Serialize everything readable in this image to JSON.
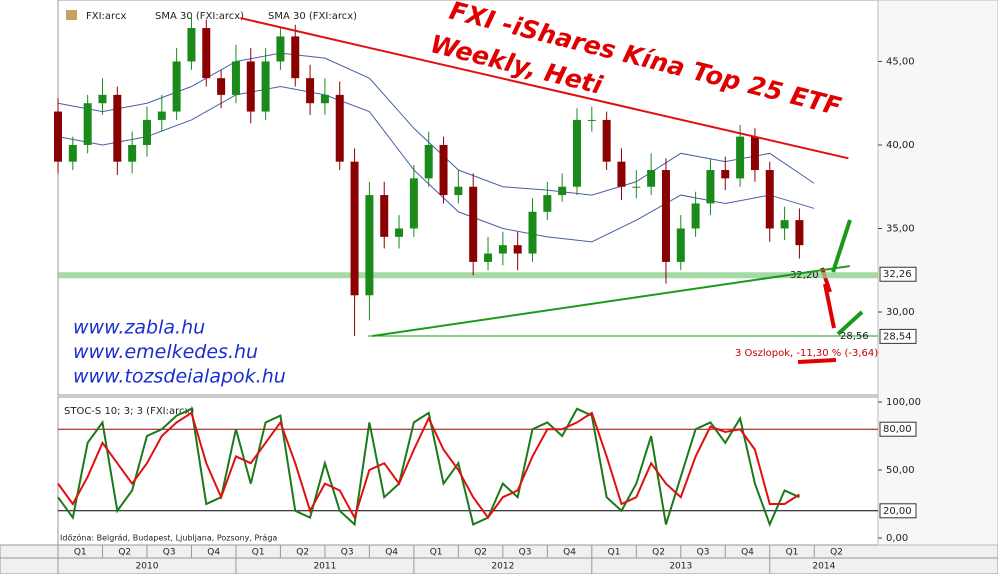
{
  "chart_data": [
    {
      "type": "candlestick",
      "name": "FXI:arcx",
      "title": "FXI -iShares Kína Top 25 ETF",
      "subtitle": "Weekly, Heti",
      "up_color": "#1a8a1a",
      "down_color": "#8b0000",
      "x": [
        0,
        1,
        2,
        3,
        4,
        5,
        6,
        7,
        8,
        9,
        10,
        11,
        12,
        13,
        14,
        15,
        16,
        17,
        18,
        19,
        20,
        21,
        22,
        23,
        24,
        25,
        26,
        27,
        28,
        29,
        30,
        31,
        32,
        33,
        34,
        35,
        36,
        37,
        38,
        39,
        40,
        41,
        42,
        43,
        44,
        45,
        46,
        47,
        48,
        49,
        50
      ],
      "open": [
        42,
        39,
        40,
        42.5,
        43,
        39,
        40,
        41.5,
        42,
        45,
        47,
        44,
        43,
        45,
        42,
        45,
        46.5,
        44,
        42.5,
        43,
        39,
        31,
        37,
        34.5,
        35,
        38,
        40,
        37,
        37.5,
        33,
        33.5,
        34,
        33.5,
        36,
        37,
        37.5,
        41.5,
        41.5,
        39,
        37.5,
        37.5,
        38.5,
        33,
        35,
        36.5,
        38.5,
        38,
        40.5,
        38.5,
        35,
        35.5
      ],
      "high": [
        42.8,
        40.5,
        43,
        44,
        43.5,
        40.8,
        42.3,
        43,
        45.8,
        47.8,
        47.5,
        44.5,
        46,
        45.8,
        45.8,
        47,
        47.2,
        44.8,
        44,
        43.8,
        39.8,
        37.8,
        37.8,
        35.8,
        38.8,
        40.8,
        40.5,
        38.5,
        38.3,
        34.5,
        34.8,
        34.8,
        36.8,
        37.8,
        38.3,
        42.2,
        42.3,
        42,
        39.8,
        38.5,
        39.5,
        39.2,
        35.8,
        37.2,
        39.2,
        39.3,
        41.2,
        41,
        39,
        36.3,
        36.2
      ],
      "low": [
        38.3,
        38.5,
        39.5,
        41.8,
        38.2,
        38.3,
        39.3,
        40.8,
        41.5,
        44.5,
        43.5,
        42.2,
        42.5,
        41.3,
        41.5,
        44.5,
        43.5,
        41.8,
        41.8,
        38.5,
        28.56,
        29.5,
        33.8,
        33.8,
        34.5,
        37.5,
        36.5,
        36.5,
        32.2,
        32.5,
        32.8,
        32.5,
        33,
        35.5,
        36.6,
        37,
        40.8,
        38.5,
        36.7,
        36.8,
        37,
        31.7,
        32.5,
        34.5,
        35.8,
        37.3,
        37.5,
        37.8,
        34.2,
        34.3,
        33.2
      ],
      "close": [
        39,
        40,
        42.5,
        43,
        39,
        40,
        41.5,
        42,
        45,
        47,
        44,
        43,
        45,
        42,
        45,
        46.5,
        44,
        42.5,
        43,
        39,
        31,
        37,
        34.5,
        35,
        38,
        40,
        37,
        37.5,
        33,
        33.5,
        34,
        33.5,
        36,
        37,
        37.5,
        41.5,
        41.5,
        39,
        37.5,
        37.5,
        38.5,
        33,
        35,
        36.5,
        38.5,
        38,
        40.5,
        38.5,
        35,
        35.5,
        34
      ],
      "series": [
        {
          "name": "SMA 30 (FXI:arcx)",
          "color": "#4a5fa8",
          "x": [
            0,
            3,
            6,
            9,
            12,
            15,
            18,
            21,
            24,
            27,
            30,
            33,
            36,
            39,
            42,
            45,
            48,
            51
          ],
          "values": [
            42.5,
            42,
            42.5,
            43.5,
            45,
            45.5,
            45.2,
            44,
            41,
            38.5,
            37.5,
            37.3,
            37,
            37.8,
            39.5,
            39,
            39.5,
            37.7
          ]
        },
        {
          "name": "SMA 30 (FXI:arcx)",
          "color": "#4a5fa8",
          "x": [
            0,
            3,
            6,
            9,
            12,
            15,
            18,
            21,
            24,
            27,
            30,
            33,
            36,
            39,
            42,
            45,
            48,
            51
          ],
          "values": [
            40.5,
            40,
            40.5,
            41.5,
            43,
            43.5,
            43,
            42,
            38.5,
            36,
            35,
            34.5,
            34.2,
            35.5,
            37,
            36.5,
            37,
            36.2
          ]
        }
      ],
      "trendlines": [
        {
          "color": "#e01010",
          "x": [
            12.3,
            53.3
          ],
          "values": [
            47.6,
            39.2
          ]
        },
        {
          "color": "#1a9a1a",
          "x": [
            21.2,
            53.4
          ],
          "values": [
            28.56,
            32.75
          ]
        }
      ],
      "levels": [
        {
          "value": 32.2,
          "label": "32,20"
        },
        {
          "value": 28.56,
          "label": "28,56"
        }
      ],
      "badges": [
        {
          "value": 32.26,
          "label": "32,26"
        },
        {
          "value": 28.54,
          "label": "28,54"
        }
      ],
      "annotation": "3 Oszlopok, -11,30 % (-3,64)",
      "websites": [
        "www.zabla.hu",
        "www.emelkedes.hu",
        "www.tozsdeialapok.hu"
      ],
      "xlim": [
        0,
        55.3
      ],
      "ylim": [
        25.03,
        48.68
      ],
      "yticks": [
        {
          "value": 30,
          "label": "30,00"
        },
        {
          "value": 35,
          "label": "35,00"
        },
        {
          "value": 40,
          "label": "40,00"
        },
        {
          "value": 45,
          "label": "45,00"
        }
      ]
    },
    {
      "type": "line",
      "title": "STOC-S 10; 3; 3 (FXI:arcx)",
      "timezone": "Időzóna: Belgrád, Budapest, Ljubljana, Pozsony, Prága",
      "x": [
        0,
        1,
        2,
        3,
        4,
        5,
        6,
        7,
        8,
        9,
        10,
        11,
        12,
        13,
        14,
        15,
        16,
        17,
        18,
        19,
        20,
        21,
        22,
        23,
        24,
        25,
        26,
        27,
        28,
        29,
        30,
        31,
        32,
        33,
        34,
        35,
        36,
        37,
        38,
        39,
        40,
        41,
        42,
        43,
        44,
        45,
        46,
        47,
        48,
        49,
        50
      ],
      "series": [
        {
          "color": "#1a7a1a",
          "values": [
            30,
            15,
            70,
            85,
            20,
            35,
            75,
            80,
            90,
            95,
            25,
            30,
            80,
            40,
            85,
            90,
            20,
            15,
            55,
            20,
            10,
            85,
            30,
            40,
            85,
            92,
            40,
            55,
            10,
            15,
            40,
            30,
            80,
            85,
            75,
            95,
            90,
            30,
            20,
            40,
            75,
            10,
            45,
            80,
            85,
            70,
            88,
            40,
            10,
            35,
            30
          ]
        },
        {
          "color": "#e01010",
          "values": [
            40,
            25,
            45,
            70,
            55,
            40,
            55,
            75,
            85,
            92,
            55,
            30,
            60,
            55,
            70,
            85,
            55,
            20,
            40,
            35,
            15,
            50,
            55,
            40,
            65,
            88,
            65,
            50,
            30,
            15,
            30,
            35,
            60,
            80,
            80,
            85,
            92,
            60,
            25,
            30,
            55,
            40,
            30,
            60,
            82,
            78,
            80,
            65,
            25,
            25,
            32
          ]
        }
      ],
      "levels": [
        {
          "value": 80,
          "label": "80,00"
        },
        {
          "value": 20,
          "label": "20,00"
        }
      ],
      "xlim": [
        0,
        55.3
      ],
      "ylim": [
        -5.15,
        103.7
      ],
      "yticks": [
        {
          "value": 0,
          "label": "0,00"
        },
        {
          "value": 50,
          "label": "50,00"
        },
        {
          "value": 100,
          "label": "100,00"
        }
      ],
      "quarters": [
        "Q1",
        "Q2",
        "Q3",
        "Q4",
        "Q1",
        "Q2",
        "Q3",
        "Q4",
        "Q1",
        "Q2",
        "Q3",
        "Q4",
        "Q1",
        "Q2",
        "Q3",
        "Q4",
        "Q1",
        "Q2"
      ],
      "years": [
        "2010",
        "2011",
        "2012",
        "2013",
        "2014"
      ]
    }
  ]
}
